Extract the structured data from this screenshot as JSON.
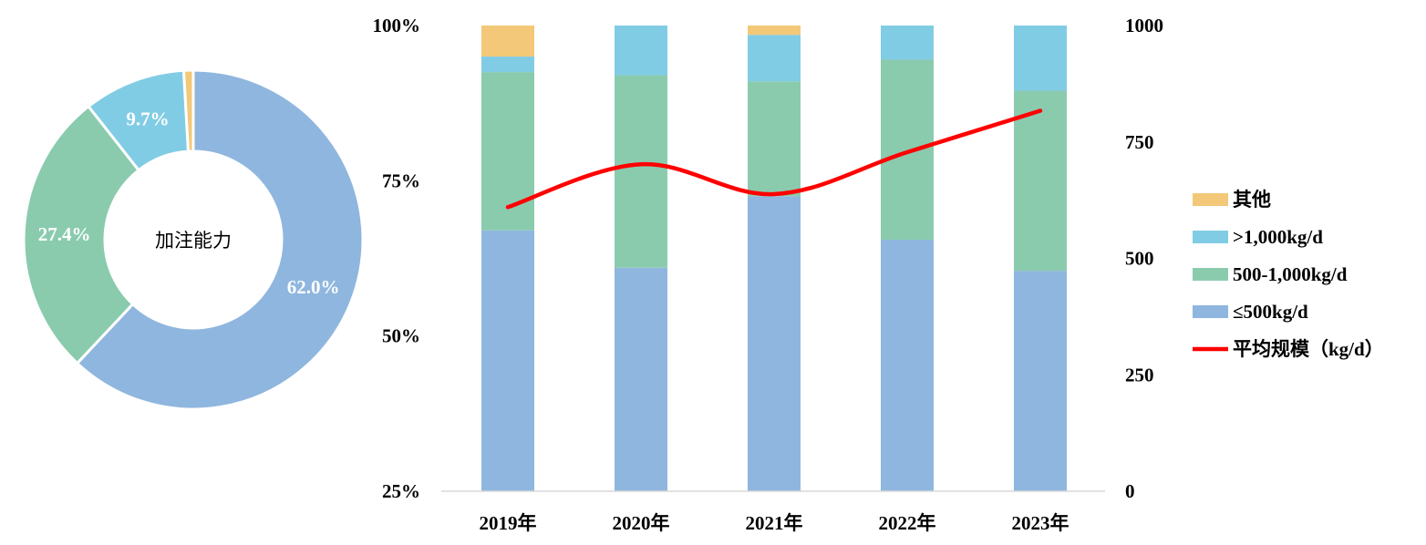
{
  "colors": {
    "other": "#F3C878",
    "gt1000": "#81CCE5",
    "mid": "#8ACBAE",
    "le500": "#8FB6DE",
    "line": "#FF0000"
  },
  "chart_data": [
    {
      "type": "pie",
      "variant": "donut",
      "center_label": "加注能力",
      "slices": [
        {
          "key": "le500",
          "label": "≤500kg/d",
          "value": 62.0,
          "display": "62.0%"
        },
        {
          "key": "mid",
          "label": "500-1,000kg/d",
          "value": 27.4,
          "display": "27.4%"
        },
        {
          "key": "gt1000",
          "label": ">1,000kg/d",
          "value": 9.7,
          "display": "9.7%"
        },
        {
          "key": "other",
          "label": "其他",
          "value": 0.9,
          "display": ""
        }
      ]
    },
    {
      "type": "bar",
      "stacked": true,
      "percent": true,
      "categories": [
        "2019年",
        "2020年",
        "2021年",
        "2022年",
        "2023年"
      ],
      "ylim": [
        25,
        100
      ],
      "yticks": [
        "25%",
        "50%",
        "75%",
        "100%"
      ],
      "y2lim": [
        0,
        1000
      ],
      "y2ticks": [
        "0",
        "250",
        "500",
        "750",
        "1000"
      ],
      "series": [
        {
          "key": "le500",
          "name": "≤500kg/d",
          "values": [
            67.0,
            61.0,
            72.5,
            65.5,
            60.5
          ]
        },
        {
          "key": "mid",
          "name": "500-1,000kg/d",
          "values": [
            25.5,
            31.0,
            18.5,
            29.0,
            29.0
          ]
        },
        {
          "key": "gt1000",
          "name": ">1,000kg/d",
          "values": [
            2.5,
            8.0,
            7.5,
            5.5,
            10.5
          ]
        },
        {
          "key": "other",
          "name": "其他",
          "values": [
            5.0,
            0.0,
            1.5,
            0.0,
            0.0
          ]
        }
      ],
      "line_series": {
        "key": "line",
        "name": "平均规模（kg/d）",
        "axis": "right",
        "values": [
          610,
          702,
          638,
          728,
          817
        ]
      },
      "legend": {
        "position": "right",
        "items": [
          {
            "key": "other",
            "label": "其他",
            "shape": "box"
          },
          {
            "key": "gt1000",
            "label": ">1,000kg/d",
            "shape": "box"
          },
          {
            "key": "mid",
            "label": "500-1,000kg/d",
            "shape": "box"
          },
          {
            "key": "le500",
            "label": "≤500kg/d",
            "shape": "box"
          },
          {
            "key": "line",
            "label": "平均规模（kg/d）",
            "shape": "line"
          }
        ]
      }
    }
  ]
}
